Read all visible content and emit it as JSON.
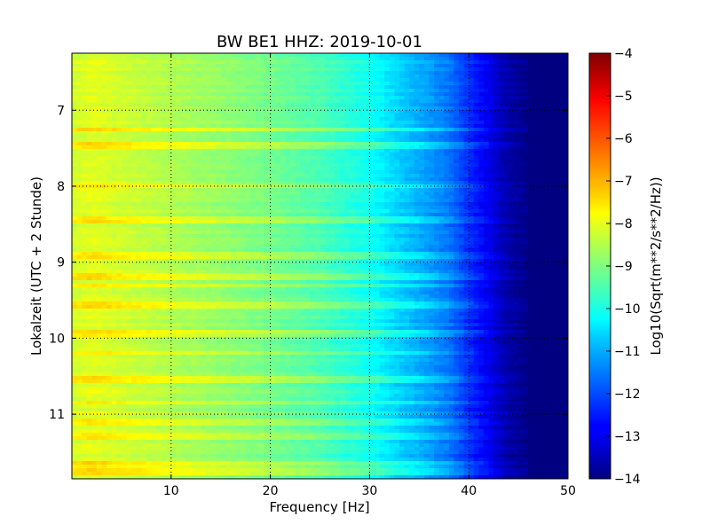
{
  "chart_data": {
    "type": "heatmap",
    "title": "BW BE1 HHZ: 2019-10-01",
    "xlabel": "Frequency [Hz]",
    "ylabel": "Lokalzeit (UTC + 2 Stunde)",
    "xlim": [
      0,
      50
    ],
    "ylim": [
      6.25,
      11.85
    ],
    "x_ticks": [
      10,
      20,
      30,
      40,
      50
    ],
    "y_ticks": [
      7,
      8,
      9,
      10,
      11
    ],
    "grid": true,
    "colorbar": {
      "label": "Log10(Sqrt(m**2/s**2/Hz))",
      "range": [
        -14,
        -4
      ],
      "ticks": [
        -4,
        -5,
        -6,
        -7,
        -8,
        -9,
        -10,
        -11,
        -12,
        -13,
        -14
      ],
      "colormap": "jet"
    },
    "spectral_profile": {
      "frequency": [
        0,
        2,
        5,
        10,
        15,
        20,
        25,
        30,
        33,
        36,
        38,
        40,
        42,
        43,
        44,
        46,
        50
      ],
      "level": [
        -8.2,
        -8.0,
        -8.2,
        -8.5,
        -8.8,
        -9.1,
        -9.5,
        -10.1,
        -10.7,
        -11.2,
        -11.6,
        -12.3,
        -12.9,
        -13.3,
        -13.6,
        -13.9,
        -14.0
      ]
    },
    "bright_bands_hours": [
      7.25,
      7.45,
      8.0,
      8.45,
      8.9,
      9.2,
      9.3,
      9.55,
      9.95,
      10.2,
      10.55,
      10.85,
      11.1,
      11.3,
      11.65,
      11.75
    ]
  }
}
